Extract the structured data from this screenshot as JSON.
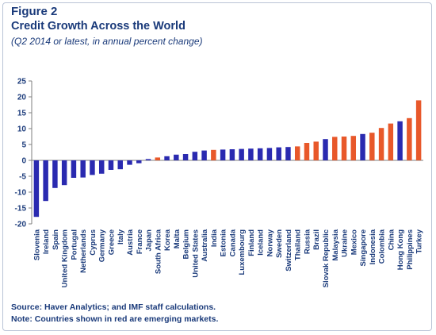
{
  "figure_label": "Figure 2",
  "source": "Source: Haver Analytics; and IMF staff calculations.",
  "note": "Note: Countries shown in red are emerging markets.",
  "colors": {
    "advanced": "#2a2ab0",
    "emerging": "#e8582a",
    "text": "#1a3a7a",
    "grid": "#d9d9d9"
  },
  "chart_data": {
    "type": "bar",
    "title": "Credit Growth Across the World",
    "subtitle": "(Q2 2014 or latest, in annual percent change)",
    "xlabel": "",
    "ylabel": "",
    "ylim": [
      -20,
      25
    ],
    "yticks": [
      -20,
      -15,
      -10,
      -5,
      0,
      5,
      10,
      15,
      20,
      25
    ],
    "grid": "none",
    "legend": "none",
    "categories": [
      "Slovenia",
      "Ireland",
      "Spain",
      "United Kingdom",
      "Portugal",
      "Netherlands",
      "Cyprus",
      "Germany",
      "Greece",
      "Italy",
      "Austria",
      "France",
      "Japan",
      "South Africa",
      "Korea",
      "Malta",
      "Belgium",
      "United States",
      "Australia",
      "India",
      "Estonia",
      "Canada",
      "Luxembourg",
      "Finland",
      "Iceland",
      "Norway",
      "Sweden",
      "Switzerland",
      "Thailand",
      "Russia",
      "Brazil",
      "Slovak Republic",
      "Malaysia",
      "Ukraine",
      "Mexico",
      "Singapore",
      "Indonesia",
      "Colombia",
      "China",
      "Hong Kong",
      "Philippines",
      "Turkey"
    ],
    "values": [
      -17.8,
      -12.8,
      -8.7,
      -7.8,
      -5.5,
      -5.4,
      -4.6,
      -4.2,
      -3.0,
      -2.8,
      -1.4,
      -0.9,
      0.4,
      0.9,
      1.3,
      1.8,
      2.0,
      2.7,
      3.1,
      3.3,
      3.4,
      3.5,
      3.6,
      3.7,
      3.8,
      3.9,
      4.1,
      4.2,
      4.4,
      5.5,
      5.9,
      6.7,
      7.4,
      7.5,
      7.7,
      8.3,
      8.7,
      10.2,
      11.6,
      12.3,
      13.3,
      18.9
    ],
    "emerging": [
      false,
      false,
      false,
      false,
      false,
      false,
      false,
      false,
      false,
      false,
      false,
      false,
      false,
      true,
      false,
      false,
      false,
      false,
      false,
      true,
      false,
      false,
      false,
      false,
      false,
      false,
      false,
      false,
      true,
      true,
      true,
      false,
      true,
      true,
      true,
      false,
      true,
      true,
      true,
      false,
      true,
      true
    ]
  }
}
